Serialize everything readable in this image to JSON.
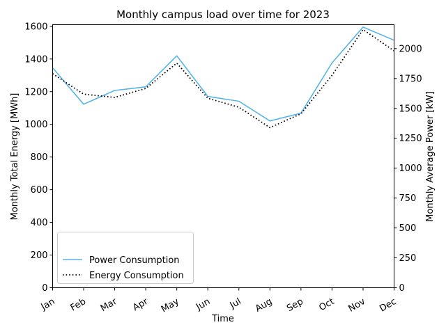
{
  "chart_data": {
    "type": "line",
    "title": "Monthly campus load over time for 2023",
    "xlabel": "Time",
    "ylabel_left": "Monthly Total Energy [MWh]",
    "ylabel_right": "Monthly Average Power [kW]",
    "categories": [
      "Jan",
      "Feb",
      "Mar",
      "Apr",
      "May",
      "Jun",
      "Jul",
      "Aug",
      "Sep",
      "Oct",
      "Nov",
      "Dec"
    ],
    "ylim_left": [
      0,
      1610
    ],
    "ylim_right": [
      0,
      2200
    ],
    "yticks_left": [
      "0",
      "200",
      "400",
      "600",
      "800",
      "1000",
      "1200",
      "1400",
      "1600"
    ],
    "yticks_right": [
      "0",
      "250",
      "500",
      "750",
      "1000",
      "1250",
      "1500",
      "1750",
      "2000"
    ],
    "grid": false,
    "legend_position": "lower-left",
    "series": [
      {
        "name": "Power Consumption",
        "axis": "right",
        "color": "#56b4e9",
        "style": "solid",
        "values": [
          1840,
          1535,
          1650,
          1680,
          1940,
          1600,
          1560,
          1395,
          1460,
          1880,
          2180,
          2070
        ]
      },
      {
        "name": "Energy Consumption",
        "axis": "left",
        "color": "#000000",
        "style": "dotted",
        "values": [
          1310,
          1185,
          1165,
          1220,
          1375,
          1160,
          1105,
          980,
          1065,
          1300,
          1580,
          1450
        ]
      }
    ]
  }
}
